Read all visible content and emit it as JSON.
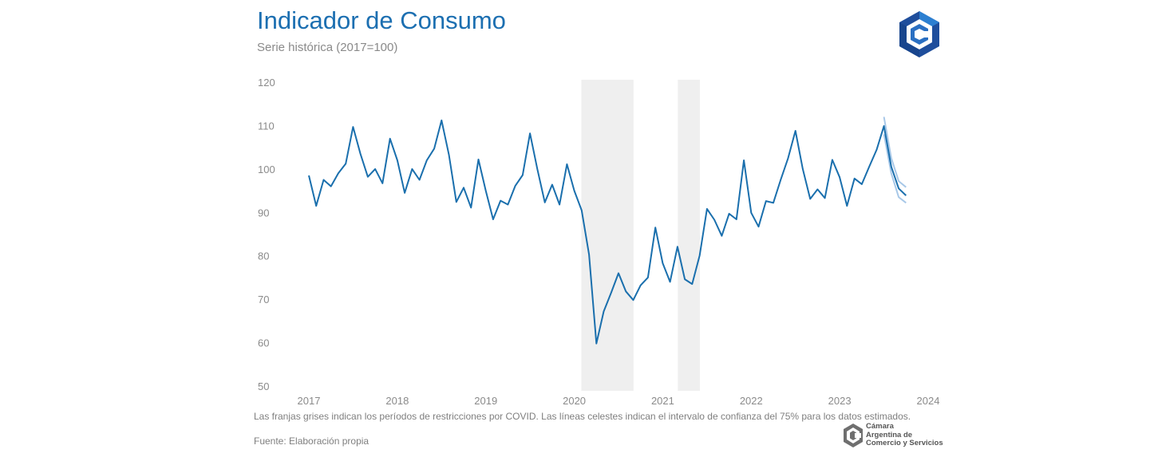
{
  "header": {
    "title": "Indicador de Consumo",
    "subtitle": "Serie histórica (2017=100)"
  },
  "footer": {
    "note": "Las franjas grises indican los períodos de restricciones por COVID. Las líneas celestes indican el intervalo de confianza del 75% para los datos estimados.",
    "source": "Fuente: Elaboración propia",
    "org_lines": [
      "Cámara",
      "Argentina de",
      "Comercio y Servicios"
    ]
  },
  "colors": {
    "title": "#1c6fb1",
    "line": "#1a6fad",
    "confidence": "#a8c8e8",
    "shade": "#efefef",
    "axis_text": "#8a8a8a"
  },
  "icons": {
    "top_logo": "cac-hexagon-logo",
    "bottom_logo": "cac-logo"
  },
  "chart_data": {
    "type": "line",
    "title": "Indicador de Consumo",
    "subtitle": "Serie histórica (2017=100)",
    "ylim": [
      50,
      120
    ],
    "yticks": [
      50,
      60,
      70,
      80,
      90,
      100,
      110,
      120
    ],
    "xlim": [
      2017,
      2024
    ],
    "xticks": [
      2017,
      2018,
      2019,
      2020,
      2021,
      2022,
      2023,
      2024
    ],
    "grid": false,
    "shaded_periods": [
      [
        2020.08,
        2020.67
      ],
      [
        2021.17,
        2021.42
      ]
    ],
    "series": [
      {
        "x": [
          2017.0,
          2017.083,
          2017.167,
          2017.25,
          2017.333,
          2017.417,
          2017.5,
          2017.583,
          2017.667,
          2017.75,
          2017.833,
          2017.917,
          2018.0,
          2018.083,
          2018.167,
          2018.25,
          2018.333,
          2018.417,
          2018.5,
          2018.583,
          2018.667,
          2018.75,
          2018.833,
          2018.917,
          2019.0,
          2019.083,
          2019.167,
          2019.25,
          2019.333,
          2019.417,
          2019.5,
          2019.583,
          2019.667,
          2019.75,
          2019.833,
          2019.917,
          2020.0,
          2020.083,
          2020.167,
          2020.25,
          2020.333,
          2020.417,
          2020.5,
          2020.583,
          2020.667,
          2020.75,
          2020.833,
          2020.917,
          2021.0,
          2021.083,
          2021.167,
          2021.25,
          2021.333,
          2021.417,
          2021.5,
          2021.583,
          2021.667,
          2021.75,
          2021.833,
          2021.917,
          2022.0,
          2022.083,
          2022.167,
          2022.25,
          2022.333,
          2022.417,
          2022.5,
          2022.583,
          2022.667,
          2022.75,
          2022.833,
          2022.917,
          2023.0,
          2023.083,
          2023.167,
          2023.25,
          2023.333,
          2023.417,
          2023.5,
          2023.583,
          2023.667,
          2023.75
        ],
        "values": [
          98.5,
          91.5,
          97.5,
          96.0,
          99.0,
          101.2,
          109.7,
          103.5,
          98.2,
          100.0,
          96.7,
          107.0,
          102.0,
          94.5,
          100.0,
          97.5,
          102.0,
          104.7,
          111.2,
          103.3,
          92.4,
          95.7,
          91.1,
          102.2,
          95.0,
          88.4,
          92.7,
          91.8,
          96.1,
          98.6,
          108.2,
          100.0,
          92.3,
          96.4,
          91.8,
          101.1,
          95.0,
          90.5,
          80.3,
          59.8,
          67.2,
          71.5,
          76.0,
          71.8,
          69.8,
          73.2,
          75.0,
          86.5,
          78.3,
          74.0,
          82.1,
          74.6,
          73.5,
          80.1,
          90.8,
          88.3,
          84.6,
          89.7,
          88.4,
          102.0,
          89.9,
          86.7,
          92.6,
          92.2,
          97.5,
          102.5,
          108.8,
          100.0,
          93.1,
          95.3,
          93.3,
          102.1,
          98.1,
          91.5,
          97.8,
          96.5,
          100.5,
          104.4,
          109.9,
          100.5,
          95.5,
          93.9
        ]
      },
      {
        "type": "confidence_upper",
        "x": [
          2023.5,
          2023.583,
          2023.667,
          2023.75
        ],
        "values": [
          112.0,
          102.5,
          97.2,
          95.8
        ]
      },
      {
        "type": "confidence_lower",
        "x": [
          2023.5,
          2023.583,
          2023.667,
          2023.75
        ],
        "values": [
          108.0,
          99.0,
          93.5,
          92.2
        ]
      }
    ]
  }
}
